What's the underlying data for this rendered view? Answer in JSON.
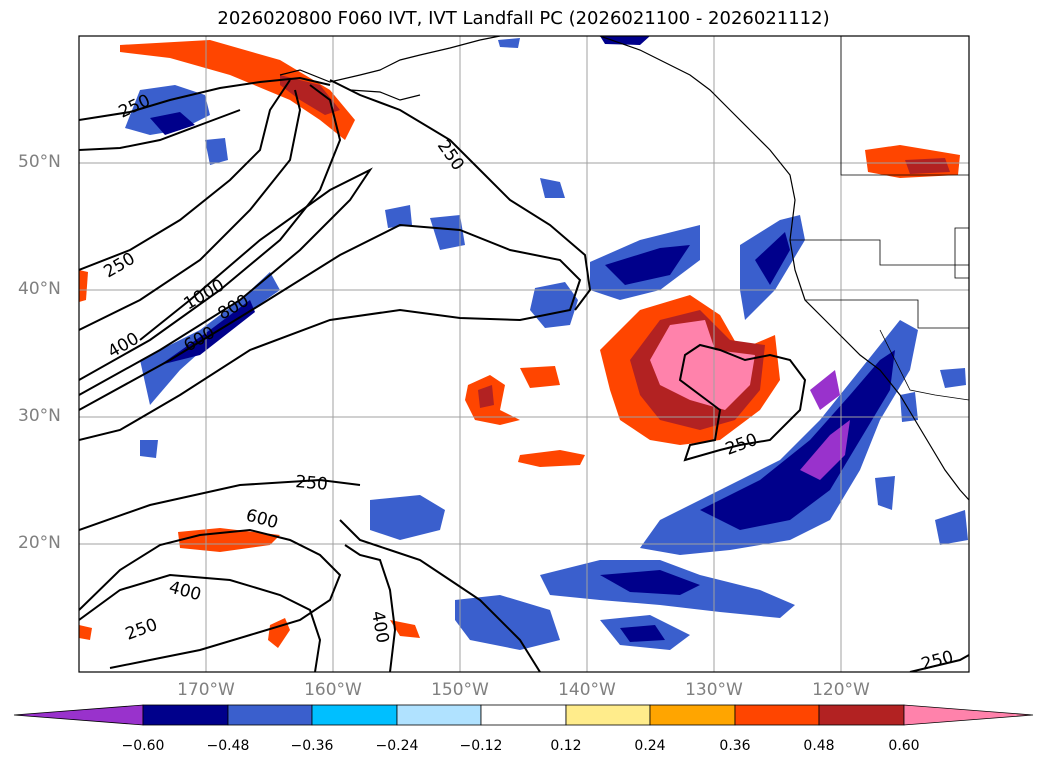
{
  "title": "2026020800 F060 IVT, IVT Landfall PC (2026021100 - 2026021112)",
  "lat_labels": [
    "50°N",
    "40°N",
    "30°N",
    "20°N"
  ],
  "lon_labels": [
    "170°W",
    "160°W",
    "150°W",
    "140°W",
    "130°W",
    "120°W"
  ],
  "contour_labels": [
    "250",
    "250",
    "250",
    "250",
    "250",
    "250",
    "250",
    "1000",
    "800",
    "600",
    "400",
    "600",
    "400",
    "250",
    "400"
  ],
  "colorbar": {
    "ticks": [
      "−0.60",
      "−0.48",
      "−0.36",
      "−0.24",
      "−0.12",
      "0.12",
      "0.24",
      "0.36",
      "0.48",
      "0.60"
    ],
    "colors": [
      "#9932cc",
      "#00008b",
      "#3a5fcd",
      "#00bfff",
      "#b0e2ff",
      "#ffffff",
      "#ffec8b",
      "#ffa500",
      "#ff4500",
      "#b22222",
      "#ff82ab"
    ]
  },
  "colors": {
    "land_outline": "#000000",
    "grid": "#a0a0a0",
    "axis_text": "#808080"
  }
}
